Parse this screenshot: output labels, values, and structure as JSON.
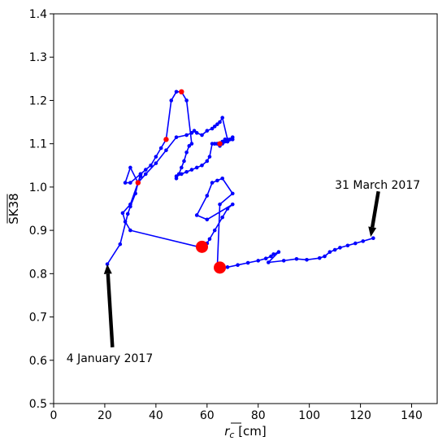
{
  "chart_data": {
    "type": "line",
    "xlabel": "r_c [cm]",
    "xlabel_parts": {
      "base": "r",
      "sub": "c",
      "unit": " [cm]"
    },
    "ylabel": "SK38",
    "xlim": [
      0,
      150
    ],
    "ylim": [
      0.5,
      1.4
    ],
    "xticks": [
      "0",
      "20",
      "40",
      "60",
      "80",
      "100",
      "120",
      "140"
    ],
    "yticks": [
      "0.5",
      "0.6",
      "0.7",
      "0.8",
      "0.9",
      "1.0",
      "1.1",
      "1.2",
      "1.3",
      "1.4"
    ],
    "grid": false,
    "colors": {
      "line": "#0000ff",
      "highlight": "#ff0000",
      "arrow": "#000000"
    },
    "series": [
      {
        "x": [
          21,
          26,
          29,
          30,
          32,
          33,
          36,
          40,
          44,
          48,
          52,
          54,
          55,
          56,
          58,
          60,
          62,
          63,
          64,
          65,
          66,
          68,
          70,
          68,
          66,
          65,
          64,
          63,
          65,
          66,
          67,
          68,
          69,
          70,
          67,
          65,
          64,
          63,
          62,
          61,
          60,
          58,
          56,
          54,
          52,
          50,
          48,
          48,
          49,
          50,
          51,
          52,
          53,
          54,
          52,
          50,
          48,
          46,
          44,
          44,
          42,
          40,
          38,
          36,
          34,
          33,
          30,
          28,
          30,
          34,
          34,
          33,
          33,
          30,
          27,
          28,
          30,
          58,
          59,
          60,
          61,
          63,
          66,
          68,
          70,
          60,
          56,
          60,
          62,
          64,
          66,
          70,
          65,
          64,
          65,
          68,
          72,
          76,
          80,
          83,
          85,
          86,
          88,
          84,
          90,
          95,
          99,
          104,
          106,
          108,
          110,
          112,
          115,
          118,
          121,
          125
        ],
        "y": [
          0.822,
          0.868,
          0.938,
          0.955,
          0.985,
          1.01,
          1.03,
          1.055,
          1.085,
          1.115,
          1.12,
          1.125,
          1.13,
          1.125,
          1.12,
          1.13,
          1.135,
          1.14,
          1.145,
          1.15,
          1.16,
          1.11,
          1.11,
          1.105,
          1.1,
          1.095,
          1.1,
          1.1,
          1.1,
          1.105,
          1.11,
          1.105,
          1.11,
          1.115,
          1.105,
          1.1,
          1.1,
          1.1,
          1.1,
          1.07,
          1.06,
          1.05,
          1.045,
          1.04,
          1.035,
          1.03,
          1.025,
          1.02,
          1.03,
          1.045,
          1.06,
          1.08,
          1.095,
          1.1,
          1.2,
          1.22,
          1.22,
          1.2,
          1.11,
          1.11,
          1.09,
          1.07,
          1.05,
          1.04,
          1.03,
          1.01,
          1.045,
          1.01,
          1.01,
          1.03,
          1.025,
          1.01,
          1.01,
          0.96,
          0.94,
          0.92,
          0.9,
          0.86,
          0.86,
          0.87,
          0.88,
          0.9,
          0.93,
          0.95,
          0.96,
          0.925,
          0.935,
          0.98,
          1.01,
          1.015,
          1.02,
          0.985,
          0.96,
          0.815,
          0.812,
          0.815,
          0.82,
          0.825,
          0.83,
          0.835,
          0.84,
          0.845,
          0.85,
          0.826,
          0.83,
          0.834,
          0.832,
          0.836,
          0.84,
          0.85,
          0.855,
          0.86,
          0.865,
          0.87,
          0.875,
          0.882
        ]
      }
    ],
    "highlight_points": [
      {
        "x": 44,
        "y": 1.11,
        "size": "small"
      },
      {
        "x": 50,
        "y": 1.22,
        "size": "small"
      },
      {
        "x": 33,
        "y": 1.01,
        "size": "small"
      },
      {
        "x": 65,
        "y": 1.1,
        "size": "small"
      },
      {
        "x": 58,
        "y": 0.862,
        "size": "large"
      },
      {
        "x": 65,
        "y": 0.814,
        "size": "large"
      }
    ],
    "annotations": [
      {
        "text": "4 January 2017",
        "text_x": 5,
        "text_y": 0.605,
        "arrow_from": [
          23,
          0.63
        ],
        "arrow_to": [
          21,
          0.822
        ]
      },
      {
        "text": "31 March 2017",
        "text_x": 110,
        "text_y": 1.005,
        "arrow_from": [
          127,
          0.99
        ],
        "arrow_to": [
          124,
          0.885
        ]
      }
    ]
  }
}
